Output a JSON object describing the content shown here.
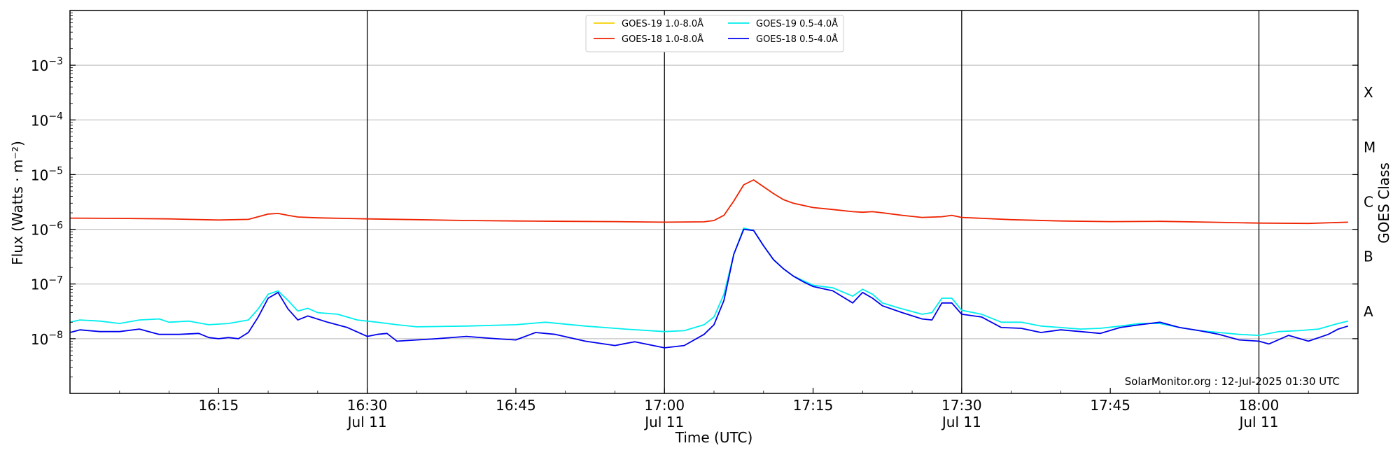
{
  "chart_data": {
    "type": "line",
    "xlabel": "Time (UTC)",
    "ylabel": "Flux (Watts · m⁻²)",
    "ylabel2": "GOES Class",
    "credit": "SolarMonitor.org : 12-Jul-2025 01:30 UTC",
    "ylim": [
      "1e-9",
      "1e-2"
    ],
    "yscale": "log",
    "xlim": [
      "16:00",
      "18:10"
    ],
    "grid": "horizontal at decades",
    "legend_position": "top-center",
    "y_ticks": [
      {
        "value": "1e-8",
        "base": "10",
        "exp": "−8"
      },
      {
        "value": "1e-7",
        "base": "10",
        "exp": "−7"
      },
      {
        "value": "1e-6",
        "base": "10",
        "exp": "−6"
      },
      {
        "value": "1e-5",
        "base": "10",
        "exp": "−5"
      },
      {
        "value": "1e-4",
        "base": "10",
        "exp": "−4"
      },
      {
        "value": "1e-3",
        "base": "10",
        "exp": "−3"
      }
    ],
    "x_ticks": [
      {
        "time": "16:15",
        "label": "16:15",
        "sub": ""
      },
      {
        "time": "16:30",
        "label": "16:30",
        "sub": "Jul 11"
      },
      {
        "time": "16:45",
        "label": "16:45",
        "sub": ""
      },
      {
        "time": "17:00",
        "label": "17:00",
        "sub": "Jul 11"
      },
      {
        "time": "17:15",
        "label": "17:15",
        "sub": ""
      },
      {
        "time": "17:30",
        "label": "17:30",
        "sub": "Jul 11"
      },
      {
        "time": "17:45",
        "label": "17:45",
        "sub": ""
      },
      {
        "time": "18:00",
        "label": "18:00",
        "sub": "Jul 11"
      }
    ],
    "vlines": [
      "16:30",
      "17:00",
      "17:30",
      "18:00"
    ],
    "goes_classes": [
      {
        "label": "A",
        "value": "3.16e-8"
      },
      {
        "label": "B",
        "value": "3.16e-7"
      },
      {
        "label": "C",
        "value": "3.16e-6"
      },
      {
        "label": "M",
        "value": "3.16e-5"
      },
      {
        "label": "X",
        "value": "3.16e-4"
      }
    ],
    "series": [
      {
        "name": "GOES-19 1.0-8.0Å",
        "color": "#f5d000",
        "points": []
      },
      {
        "name": "GOES-18 1.0-8.0Å",
        "color": "#ee2200",
        "points": [
          [
            "16:00",
            "1.6e-6"
          ],
          [
            "16:05",
            "1.58e-6"
          ],
          [
            "16:10",
            "1.55e-6"
          ],
          [
            "16:15",
            "1.48e-6"
          ],
          [
            "16:18",
            "1.52e-6"
          ],
          [
            "16:19",
            "1.7e-6"
          ],
          [
            "16:20",
            "1.9e-6"
          ],
          [
            "16:21",
            "1.95e-6"
          ],
          [
            "16:22",
            "1.8e-6"
          ],
          [
            "16:23",
            "1.68e-6"
          ],
          [
            "16:25",
            "1.62e-6"
          ],
          [
            "16:30",
            "1.55e-6"
          ],
          [
            "16:35",
            "1.5e-6"
          ],
          [
            "16:40",
            "1.45e-6"
          ],
          [
            "16:45",
            "1.42e-6"
          ],
          [
            "16:50",
            "1.4e-6"
          ],
          [
            "16:55",
            "1.38e-6"
          ],
          [
            "17:00",
            "1.35e-6"
          ],
          [
            "17:04",
            "1.37e-6"
          ],
          [
            "17:05",
            "1.45e-6"
          ],
          [
            "17:06",
            "1.8e-6"
          ],
          [
            "17:07",
            "3.3e-6"
          ],
          [
            "17:08",
            "6.5e-6"
          ],
          [
            "17:09",
            "8.0e-6"
          ],
          [
            "17:10",
            "6.0e-6"
          ],
          [
            "17:11",
            "4.5e-6"
          ],
          [
            "17:12",
            "3.5e-6"
          ],
          [
            "17:13",
            "3.0e-6"
          ],
          [
            "17:15",
            "2.5e-6"
          ],
          [
            "17:17",
            "2.3e-6"
          ],
          [
            "17:19",
            "2.1e-6"
          ],
          [
            "17:20",
            "2.05e-6"
          ],
          [
            "17:21",
            "2.1e-6"
          ],
          [
            "17:22",
            "2.0e-6"
          ],
          [
            "17:24",
            "1.8e-6"
          ],
          [
            "17:26",
            "1.65e-6"
          ],
          [
            "17:28",
            "1.7e-6"
          ],
          [
            "17:29",
            "1.8e-6"
          ],
          [
            "17:30",
            "1.65e-6"
          ],
          [
            "17:35",
            "1.5e-6"
          ],
          [
            "17:40",
            "1.42e-6"
          ],
          [
            "17:45",
            "1.38e-6"
          ],
          [
            "17:50",
            "1.4e-6"
          ],
          [
            "17:55",
            "1.35e-6"
          ],
          [
            "18:00",
            "1.3e-6"
          ],
          [
            "18:05",
            "1.28e-6"
          ],
          [
            "18:09",
            "1.35e-6"
          ]
        ]
      },
      {
        "name": "GOES-19 0.5-4.0Å",
        "color": "#00eeee",
        "points": [
          [
            "16:00",
            "2.0e-8"
          ],
          [
            "16:01",
            "2.2e-8"
          ],
          [
            "16:03",
            "2.1e-8"
          ],
          [
            "16:05",
            "1.9e-8"
          ],
          [
            "16:07",
            "2.2e-8"
          ],
          [
            "16:09",
            "2.3e-8"
          ],
          [
            "16:10",
            "2.0e-8"
          ],
          [
            "16:12",
            "2.1e-8"
          ],
          [
            "16:14",
            "1.8e-8"
          ],
          [
            "16:16",
            "1.9e-8"
          ],
          [
            "16:18",
            "2.2e-8"
          ],
          [
            "16:19",
            "3.5e-8"
          ],
          [
            "16:20",
            "6.5e-8"
          ],
          [
            "16:21",
            "7.5e-8"
          ],
          [
            "16:22",
            "5.0e-8"
          ],
          [
            "16:23",
            "3.2e-8"
          ],
          [
            "16:24",
            "3.6e-8"
          ],
          [
            "16:25",
            "3.0e-8"
          ],
          [
            "16:27",
            "2.8e-8"
          ],
          [
            "16:29",
            "2.2e-8"
          ],
          [
            "16:31",
            "2.0e-8"
          ],
          [
            "16:33",
            "1.8e-8"
          ],
          [
            "16:35",
            "1.65e-8"
          ],
          [
            "16:40",
            "1.7e-8"
          ],
          [
            "16:45",
            "1.8e-8"
          ],
          [
            "16:48",
            "2.0e-8"
          ],
          [
            "16:52",
            "1.7e-8"
          ],
          [
            "16:56",
            "1.5e-8"
          ],
          [
            "17:00",
            "1.35e-8"
          ],
          [
            "17:02",
            "1.4e-8"
          ],
          [
            "17:04",
            "1.8e-8"
          ],
          [
            "17:05",
            "2.5e-8"
          ],
          [
            "17:06",
            "6.5e-8"
          ],
          [
            "17:07",
            "3.5e-7"
          ],
          [
            "17:08",
            "1.05e-6"
          ],
          [
            "17:09",
            "9.5e-7"
          ],
          [
            "17:10",
            "5.0e-7"
          ],
          [
            "17:11",
            "2.8e-7"
          ],
          [
            "17:12",
            "1.9e-7"
          ],
          [
            "17:13",
            "1.4e-7"
          ],
          [
            "17:14",
            "1.15e-7"
          ],
          [
            "17:15",
            "9.5e-8"
          ],
          [
            "17:17",
            "8.5e-8"
          ],
          [
            "17:19",
            "6.0e-8"
          ],
          [
            "17:20",
            "8.0e-8"
          ],
          [
            "17:21",
            "6.5e-8"
          ],
          [
            "17:22",
            "4.5e-8"
          ],
          [
            "17:24",
            "3.5e-8"
          ],
          [
            "17:26",
            "2.8e-8"
          ],
          [
            "17:27",
            "3.0e-8"
          ],
          [
            "17:28",
            "5.5e-8"
          ],
          [
            "17:29",
            "5.5e-8"
          ],
          [
            "17:30",
            "3.3e-8"
          ],
          [
            "17:32",
            "2.8e-8"
          ],
          [
            "17:34",
            "2.0e-8"
          ],
          [
            "17:36",
            "2.0e-8"
          ],
          [
            "17:38",
            "1.7e-8"
          ],
          [
            "17:40",
            "1.6e-8"
          ],
          [
            "17:42",
            "1.5e-8"
          ],
          [
            "17:44",
            "1.55e-8"
          ],
          [
            "17:46",
            "1.7e-8"
          ],
          [
            "17:48",
            "1.9e-8"
          ],
          [
            "17:50",
            "1.9e-8"
          ],
          [
            "17:52",
            "1.6e-8"
          ],
          [
            "17:54",
            "1.4e-8"
          ],
          [
            "17:56",
            "1.3e-8"
          ],
          [
            "17:58",
            "1.2e-8"
          ],
          [
            "18:00",
            "1.15e-8"
          ],
          [
            "18:02",
            "1.35e-8"
          ],
          [
            "18:04",
            "1.4e-8"
          ],
          [
            "18:06",
            "1.5e-8"
          ],
          [
            "18:08",
            "1.9e-8"
          ],
          [
            "18:09",
            "2.1e-8"
          ]
        ]
      },
      {
        "name": "GOES-18 0.5-4.0Å",
        "color": "#0000ee",
        "points": [
          [
            "16:00",
            "1.3e-8"
          ],
          [
            "16:01",
            "1.45e-8"
          ],
          [
            "16:03",
            "1.35e-8"
          ],
          [
            "16:05",
            "1.35e-8"
          ],
          [
            "16:07",
            "1.5e-8"
          ],
          [
            "16:09",
            "1.2e-8"
          ],
          [
            "16:11",
            "1.2e-8"
          ],
          [
            "16:13",
            "1.25e-8"
          ],
          [
            "16:14",
            "1.05e-8"
          ],
          [
            "16:15",
            "1.0e-8"
          ],
          [
            "16:16",
            "1.05e-8"
          ],
          [
            "16:17",
            "1.0e-8"
          ],
          [
            "16:18",
            "1.3e-8"
          ],
          [
            "16:19",
            "2.5e-8"
          ],
          [
            "16:20",
            "5.5e-8"
          ],
          [
            "16:21",
            "7.0e-8"
          ],
          [
            "16:22",
            "3.5e-8"
          ],
          [
            "16:23",
            "2.2e-8"
          ],
          [
            "16:24",
            "2.6e-8"
          ],
          [
            "16:26",
            "2.0e-8"
          ],
          [
            "16:28",
            "1.6e-8"
          ],
          [
            "16:30",
            "1.1e-8"
          ],
          [
            "16:31",
            "1.2e-8"
          ],
          [
            "16:32",
            "1.25e-8"
          ],
          [
            "16:33",
            "9.0e-9"
          ],
          [
            "16:35",
            "9.5e-9"
          ],
          [
            "16:37",
            "1.0e-8"
          ],
          [
            "16:40",
            "1.1e-8"
          ],
          [
            "16:43",
            "1.0e-8"
          ],
          [
            "16:45",
            "9.5e-9"
          ],
          [
            "16:47",
            "1.3e-8"
          ],
          [
            "16:49",
            "1.2e-8"
          ],
          [
            "16:52",
            "9.0e-9"
          ],
          [
            "16:55",
            "7.5e-9"
          ],
          [
            "16:57",
            "8.8e-9"
          ],
          [
            "17:00",
            "6.8e-9"
          ],
          [
            "17:02",
            "7.5e-9"
          ],
          [
            "17:04",
            "1.2e-8"
          ],
          [
            "17:05",
            "1.8e-8"
          ],
          [
            "17:06",
            "5.0e-8"
          ],
          [
            "17:07",
            "3.5e-7"
          ],
          [
            "17:08",
            "1.0e-6"
          ],
          [
            "17:09",
            "9.5e-7"
          ],
          [
            "17:10",
            "5.0e-7"
          ],
          [
            "17:11",
            "2.8e-7"
          ],
          [
            "17:12",
            "1.9e-7"
          ],
          [
            "17:13",
            "1.4e-7"
          ],
          [
            "17:14",
            "1.1e-7"
          ],
          [
            "17:15",
            "9.0e-8"
          ],
          [
            "17:17",
            "7.5e-8"
          ],
          [
            "17:19",
            "4.5e-8"
          ],
          [
            "17:20",
            "7.0e-8"
          ],
          [
            "17:21",
            "5.5e-8"
          ],
          [
            "17:22",
            "4.0e-8"
          ],
          [
            "17:24",
            "3.0e-8"
          ],
          [
            "17:26",
            "2.3e-8"
          ],
          [
            "17:27",
            "2.2e-8"
          ],
          [
            "17:28",
            "4.5e-8"
          ],
          [
            "17:29",
            "4.5e-8"
          ],
          [
            "17:30",
            "2.8e-8"
          ],
          [
            "17:32",
            "2.5e-8"
          ],
          [
            "17:34",
            "1.6e-8"
          ],
          [
            "17:36",
            "1.55e-8"
          ],
          [
            "17:38",
            "1.3e-8"
          ],
          [
            "17:40",
            "1.45e-8"
          ],
          [
            "17:42",
            "1.35e-8"
          ],
          [
            "17:44",
            "1.25e-8"
          ],
          [
            "17:46",
            "1.6e-8"
          ],
          [
            "17:48",
            "1.8e-8"
          ],
          [
            "17:50",
            "2.0e-8"
          ],
          [
            "17:52",
            "1.6e-8"
          ],
          [
            "17:54",
            "1.4e-8"
          ],
          [
            "17:56",
            "1.2e-8"
          ],
          [
            "17:58",
            "9.5e-9"
          ],
          [
            "18:00",
            "9.0e-9"
          ],
          [
            "18:01",
            "8.0e-9"
          ],
          [
            "18:03",
            "1.15e-8"
          ],
          [
            "18:05",
            "9.0e-9"
          ],
          [
            "18:07",
            "1.2e-8"
          ],
          [
            "18:08",
            "1.5e-8"
          ],
          [
            "18:09",
            "1.7e-8"
          ]
        ]
      }
    ]
  }
}
